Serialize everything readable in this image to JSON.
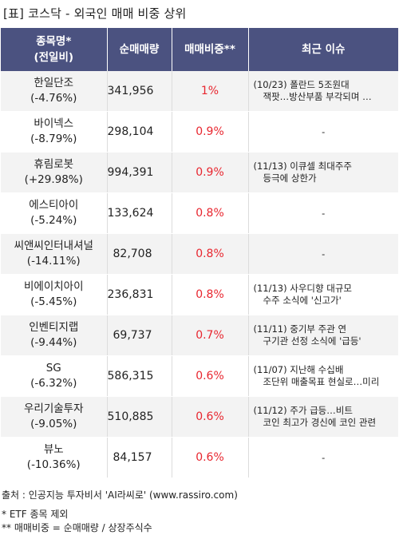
{
  "title": "[표] 코스닥 - 외국인 매매 비중 상위",
  "headers": {
    "name_line1": "종목명*",
    "name_line2": "(전일비)",
    "volume": "순매매량",
    "ratio": "매매비중**",
    "issue": "최근 이슈"
  },
  "rows": [
    {
      "name": "한일단조",
      "change": "(-4.76%)",
      "volume": "341,956",
      "ratio": "1%",
      "issue1": "(10/23) 폴란드 5조원대",
      "issue2": "잭팟…방산부품 부각되며 …"
    },
    {
      "name": "바이넥스",
      "change": "(-8.79%)",
      "volume": "298,104",
      "ratio": "0.9%",
      "issue1": "-",
      "issue2": ""
    },
    {
      "name": "휴림로봇",
      "change": "(+29.98%)",
      "volume": "994,391",
      "ratio": "0.9%",
      "issue1": "(11/13) 이큐셀 최대주주",
      "issue2": "등극에 상한가"
    },
    {
      "name": "에스티아이",
      "change": "(-5.24%)",
      "volume": "133,624",
      "ratio": "0.8%",
      "issue1": "-",
      "issue2": ""
    },
    {
      "name": "씨앤씨인터내셔널",
      "change": "(-14.11%)",
      "volume": "82,708",
      "ratio": "0.8%",
      "issue1": "-",
      "issue2": ""
    },
    {
      "name": "비에이치아이",
      "change": "(-5.45%)",
      "volume": "236,831",
      "ratio": "0.8%",
      "issue1": "(11/13) 사우디향 대규모",
      "issue2": "수주 소식에 '신고가'"
    },
    {
      "name": "인벤티지랩",
      "change": "(-9.44%)",
      "volume": "69,737",
      "ratio": "0.7%",
      "issue1": "(11/11) 중기부 주관 연",
      "issue2": "구기관 선정 소식에 '급등'"
    },
    {
      "name": "SG",
      "change": "(-6.32%)",
      "volume": "586,315",
      "ratio": "0.6%",
      "issue1": "(11/07) 지난해 수십배",
      "issue2": "조단위 매출목표 현실로…미리"
    },
    {
      "name": "우리기술투자",
      "change": "(-9.05%)",
      "volume": "510,885",
      "ratio": "0.6%",
      "issue1": "(11/12) 주가 급등…비트",
      "issue2": "코인 최고가 경신에 코인 관련"
    },
    {
      "name": "뷰노",
      "change": "(-10.36%)",
      "volume": "84,157",
      "ratio": "0.6%",
      "issue1": "-",
      "issue2": ""
    }
  ],
  "footer": {
    "source": "출처 : 인공지능 투자비서 'AI라씨로' (www.rassiro.com)",
    "note1": "* ETF 종목 제외",
    "note2": "** 매매비중 = 순매매량 / 상장주식수"
  },
  "colors": {
    "header_bg": "#4b5280",
    "ratio_text": "#e8262f",
    "row_shade": "#f3f3f3"
  }
}
